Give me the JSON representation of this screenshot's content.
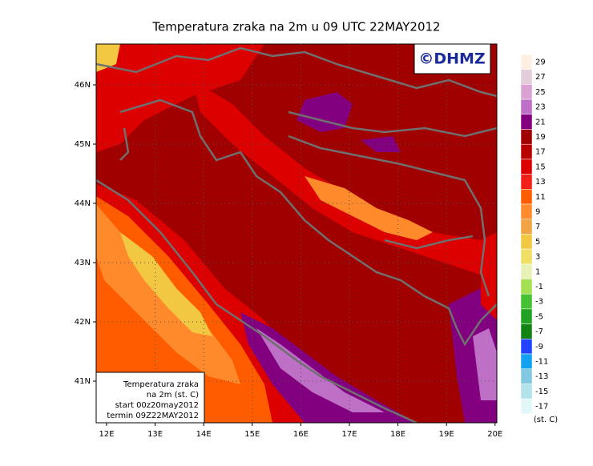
{
  "title": "Temperatura zraka na 2m u 09 UTC 22MAY2012",
  "logo": "©DHMZ",
  "lon_ticks": [
    "12E",
    "13E",
    "14E",
    "15E",
    "16E",
    "17E",
    "18E",
    "19E",
    "20E"
  ],
  "lat_ticks": [
    "46N",
    "45N",
    "44N",
    "43N",
    "42N",
    "41N"
  ],
  "info_box": [
    "Temperatura zraka",
    "na 2m (st. C)",
    "start 00z20may2012",
    "termin 09Z22MAY2012"
  ],
  "colorbar": {
    "unit": "(st. C)",
    "levels": [
      29,
      27,
      25,
      23,
      21,
      19,
      17,
      15,
      13,
      11,
      9,
      7,
      5,
      3,
      1,
      -1,
      -3,
      -5,
      -7,
      -9,
      -11,
      -13,
      -15,
      -17
    ],
    "colors": [
      "#fdf0e2",
      "#e2cdd9",
      "#d9a2d2",
      "#be6fc6",
      "#82007f",
      "#a10000",
      "#b80000",
      "#dc0000",
      "#f22018",
      "#ff5c00",
      "#ff8a2c",
      "#f2a444",
      "#f2c842",
      "#f2e066",
      "#e8f2b4",
      "#a4e052",
      "#44c232",
      "#22a222",
      "#128212",
      "#2244ff",
      "#12a2f0",
      "#82c8e0",
      "#b2e2ea",
      "#e2f8f8"
    ]
  }
}
